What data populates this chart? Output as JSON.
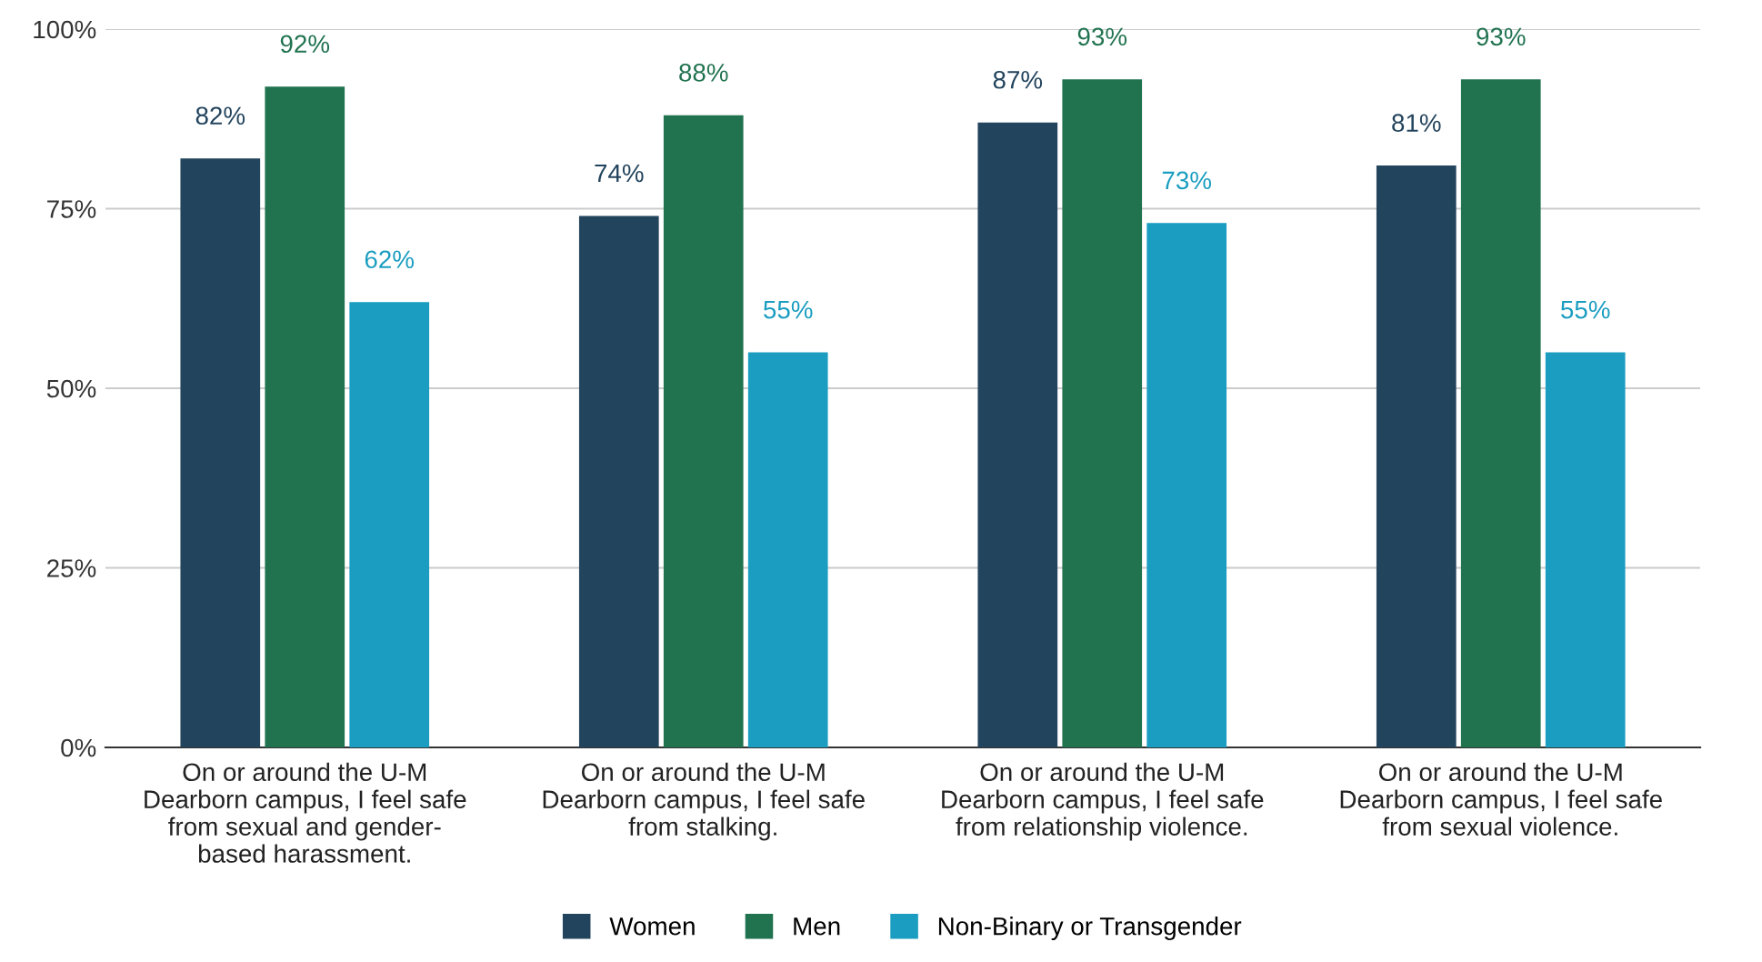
{
  "chart_data": {
    "type": "bar",
    "categories": [
      "On or around the U-M\nDearborn campus, I feel safe\nfrom sexual and gender-\nbased harassment.",
      "On or around the U-M\nDearborn campus, I feel safe\nfrom stalking.",
      "On or around the U-M\nDearborn campus, I feel safe\nfrom relationship violence.",
      "On or around the U-M\nDearborn campus, I feel safe\nfrom sexual violence."
    ],
    "series": [
      {
        "name": "Women",
        "color": "#23445d",
        "values": [
          82,
          74,
          87,
          81
        ],
        "value_labels": [
          "82%",
          "74%",
          "87%",
          "81%"
        ]
      },
      {
        "name": "Men",
        "color": "#217350",
        "values": [
          92,
          88,
          93,
          93
        ],
        "value_labels": [
          "92%",
          "88%",
          "93%",
          "93%"
        ]
      },
      {
        "name": "Non-Binary or Transgender",
        "color": "#1a9dc0",
        "values": [
          62,
          55,
          73,
          55
        ],
        "value_labels": [
          "62%",
          "55%",
          "73%",
          "55%"
        ]
      }
    ],
    "ylim": [
      0,
      100
    ],
    "yticks": [
      {
        "value": 0,
        "label": "0%"
      },
      {
        "value": 25,
        "label": "25%"
      },
      {
        "value": 50,
        "label": "50%"
      },
      {
        "value": 75,
        "label": "75%"
      },
      {
        "value": 100,
        "label": "100%"
      }
    ],
    "grid": "y",
    "legend": "bottom"
  }
}
